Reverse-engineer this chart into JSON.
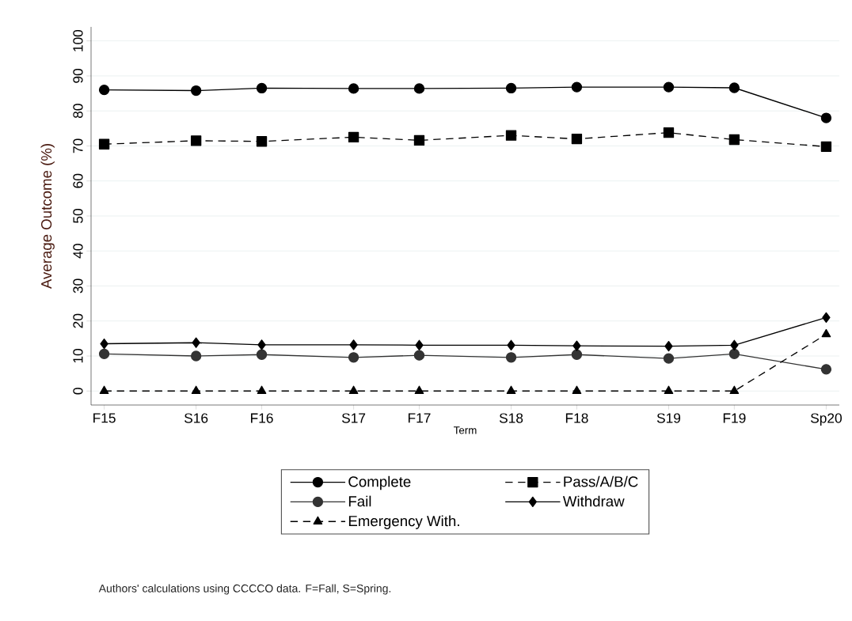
{
  "chart_data": {
    "type": "line",
    "xlabel": "Term",
    "ylabel": "Average Outcome (%)",
    "x": [
      "2015-09",
      "2016-04",
      "2016-09",
      "2017-04",
      "2017-09",
      "2018-04",
      "2018-09",
      "2019-04",
      "2019-09",
      "2020-04"
    ],
    "xlim": [
      "2015-08",
      "2020-05"
    ],
    "xticks": [
      {
        "value": "2015-09",
        "label": "F15"
      },
      {
        "value": "2016-04",
        "label": "S16"
      },
      {
        "value": "2016-09",
        "label": "F16"
      },
      {
        "value": "2017-04",
        "label": "S17"
      },
      {
        "value": "2017-09",
        "label": "F17"
      },
      {
        "value": "2018-04",
        "label": "S18"
      },
      {
        "value": "2018-09",
        "label": "F18"
      },
      {
        "value": "2019-04",
        "label": "S19"
      },
      {
        "value": "2019-09",
        "label": "F19"
      },
      {
        "value": "2020-04",
        "label": "Sp20"
      }
    ],
    "ylim": [
      -4,
      104
    ],
    "yticks": [
      0,
      10,
      20,
      30,
      40,
      50,
      60,
      70,
      80,
      90,
      100
    ],
    "grid": "y",
    "legend": "bottom",
    "series": [
      {
        "name": "Complete",
        "color": "#000000",
        "marker": "circle",
        "line_style": "solid",
        "values": [
          86,
          85.8,
          86.5,
          86.4,
          86.4,
          86.5,
          86.8,
          86.8,
          86.6,
          78
        ]
      },
      {
        "name": "Pass/A/B/C",
        "color": "#000000",
        "marker": "square",
        "line_style": "dashed",
        "values": [
          70.5,
          71.5,
          71.3,
          72.5,
          71.6,
          73,
          72,
          73.8,
          71.8,
          69.8
        ]
      },
      {
        "name": "Fail",
        "color": "#333333",
        "marker": "circle",
        "line_style": "solid",
        "values": [
          10.6,
          10,
          10.4,
          9.6,
          10.2,
          9.6,
          10.4,
          9.3,
          10.6,
          6.2
        ]
      },
      {
        "name": "Withdraw",
        "color": "#000000",
        "marker": "diamond",
        "line_style": "solid",
        "values": [
          13.5,
          13.8,
          13.2,
          13.2,
          13.1,
          13.1,
          12.9,
          12.8,
          13.1,
          21
        ]
      },
      {
        "name": "Emergency With.",
        "color": "#000000",
        "marker": "triangle",
        "line_style": "dashed",
        "values": [
          0,
          0,
          0,
          0,
          0,
          0,
          0,
          0,
          0,
          16.2
        ]
      }
    ],
    "annotations": [
      "Authors' calculations using CCCCO data. F=Fall, S=Spring."
    ]
  }
}
